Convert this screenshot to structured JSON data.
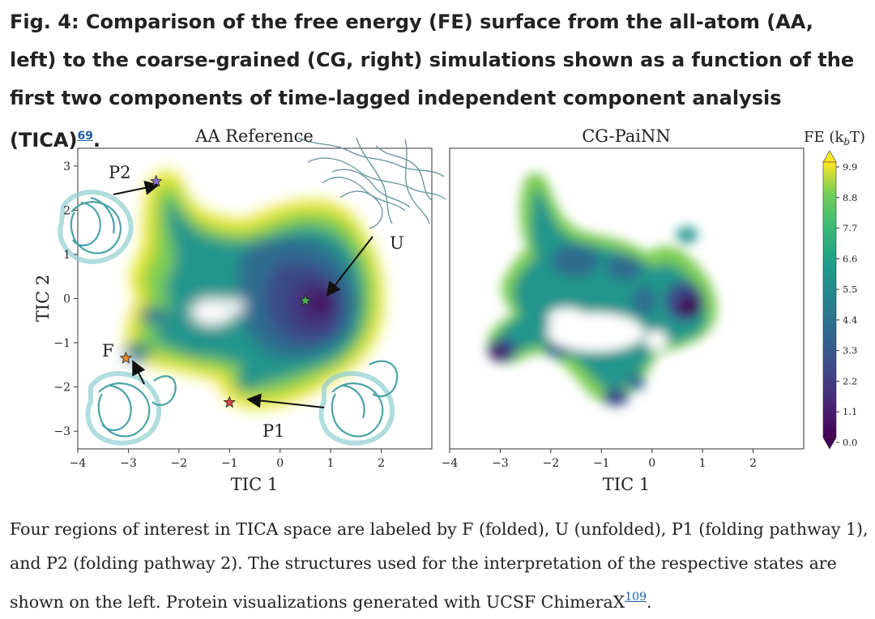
{
  "caption": {
    "title": "Fig. 4: Comparison of the free energy (FE) surface from the all-atom (AA, left) to the coarse-grained (CG, right) simulations shown as a function of the first two components of time-lagged independent component analysis (TICA)",
    "title_ref": "69",
    "title_end": ".",
    "body": "Four regions of interest in TICA space are labeled by F (folded), U (unfolded), P1 (folding pathway 1), and P2 (folding pathway 2). The structures used for the interpretation of the respective states are shown on the left. Protein visualizations generated with UCSF ChimeraX",
    "body_ref": "109",
    "body_end": "."
  },
  "chart_data": [
    {
      "type": "heatmap",
      "title": "AA Reference",
      "xlabel": "TIC 1",
      "ylabel": "TIC 2",
      "xlim": [
        -4,
        3
      ],
      "ylim": [
        -3.4,
        3.4
      ],
      "xticks": [
        "−4",
        "−3",
        "−2",
        "−1",
        "0",
        "1",
        "2"
      ],
      "yticks": [
        "3",
        "2",
        "1",
        "0",
        "−1",
        "−2",
        "−3"
      ],
      "states": [
        {
          "label": "P2",
          "x": -2.45,
          "y": 2.65,
          "color": "#8a6fd6"
        },
        {
          "label": "U",
          "x": 0.5,
          "y": -0.05,
          "color": "#4caf50"
        },
        {
          "label": "F",
          "x": -3.05,
          "y": -1.35,
          "color": "#f08a24"
        },
        {
          "label": "P1",
          "x": -1.0,
          "y": -2.35,
          "color": "#e0454a"
        }
      ]
    },
    {
      "type": "heatmap",
      "title": "CG-PaiNN",
      "xlabel": "TIC 1",
      "xlim": [
        -4,
        3
      ],
      "ylim": [
        -3.4,
        3.4
      ],
      "xticks": [
        "−4",
        "−3",
        "−2",
        "−1",
        "0",
        "1",
        "2"
      ]
    }
  ],
  "colorbar": {
    "label": "FE (k",
    "label_sub": "b",
    "label_end": "T)",
    "min": 0.0,
    "max": 9.9,
    "ticks": [
      "9.9",
      "8.8",
      "7.7",
      "6.6",
      "5.5",
      "4.4",
      "3.3",
      "2.2",
      "1.1",
      "0.0"
    ]
  }
}
